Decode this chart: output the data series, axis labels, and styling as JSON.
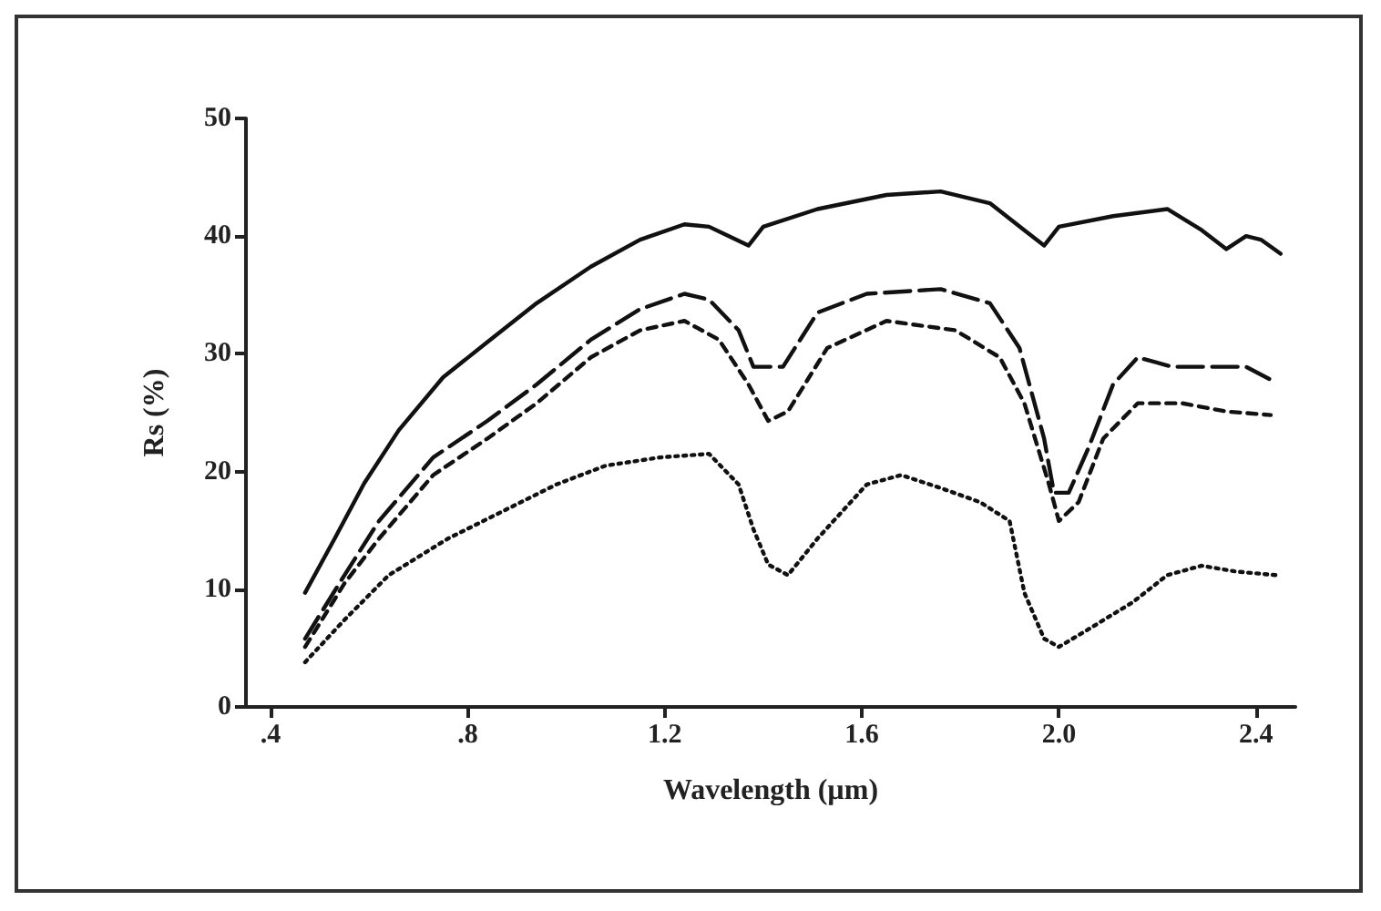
{
  "chart_data": {
    "type": "line",
    "xlabel": "Wavelength (µm)",
    "ylabel": "Rs (%)",
    "xlim": [
      0.35,
      2.48
    ],
    "ylim": [
      0,
      50
    ],
    "xticks": [
      {
        "value": 0.4,
        "label": ".4"
      },
      {
        "value": 0.8,
        "label": ".8"
      },
      1.2,
      1.6,
      {
        "value": 2.0,
        "label": "2.0"
      },
      2.4
    ],
    "yticks": [
      0,
      10,
      20,
      30,
      40,
      50
    ],
    "grid": false,
    "marker": "none",
    "series": [
      {
        "color": "#111111",
        "line_style": "solid",
        "x": [
          0.47,
          0.53,
          0.59,
          0.66,
          0.75,
          0.84,
          0.94,
          1.05,
          1.15,
          1.24,
          1.29,
          1.37,
          1.4,
          1.51,
          1.65,
          1.76,
          1.86,
          1.93,
          1.97,
          2.0,
          2.11,
          2.22,
          2.29,
          2.34,
          2.38,
          2.41,
          2.45
        ],
        "values": [
          9.7,
          14.3,
          19,
          23.5,
          28,
          31,
          34.3,
          37.4,
          39.7,
          41,
          40.8,
          39.2,
          40.8,
          42.3,
          43.5,
          43.8,
          42.8,
          40.5,
          39.2,
          40.8,
          41.7,
          42.3,
          40.5,
          38.9,
          40,
          39.7,
          38.5
        ]
      },
      {
        "color": "#111111",
        "line_style": "dashed",
        "x": [
          0.47,
          0.55,
          0.62,
          0.73,
          0.84,
          0.94,
          1.05,
          1.15,
          1.24,
          1.29,
          1.35,
          1.38,
          1.44,
          1.51,
          1.61,
          1.76,
          1.86,
          1.92,
          1.97,
          1.99,
          2.02,
          2.06,
          2.11,
          2.16,
          2.23,
          2.32,
          2.38,
          2.43
        ],
        "values": [
          5.8,
          11.2,
          15.8,
          21.2,
          24.3,
          27.4,
          31.2,
          33.8,
          35.1,
          34.6,
          32,
          28.9,
          28.9,
          33.5,
          35.1,
          35.5,
          34.3,
          30.5,
          22.8,
          18.2,
          18.2,
          22,
          27.4,
          29.7,
          28.9,
          28.9,
          28.9,
          27.8
        ]
      },
      {
        "color": "#111111",
        "line_style": "short-dashed",
        "x": [
          0.47,
          0.55,
          0.62,
          0.73,
          0.84,
          0.94,
          1.05,
          1.15,
          1.24,
          1.31,
          1.37,
          1.41,
          1.45,
          1.53,
          1.65,
          1.79,
          1.88,
          1.93,
          1.98,
          2.0,
          2.04,
          2.09,
          2.16,
          2.25,
          2.34,
          2.43
        ],
        "values": [
          5.1,
          10.5,
          14.3,
          19.7,
          22.8,
          25.8,
          29.7,
          32,
          32.8,
          31.2,
          27.4,
          24.3,
          25.1,
          30.5,
          32.8,
          32,
          29.7,
          25.8,
          18.9,
          15.8,
          17.4,
          22.8,
          25.8,
          25.8,
          25.1,
          24.8
        ]
      },
      {
        "color": "#111111",
        "line_style": "dotted",
        "x": [
          0.47,
          0.55,
          0.64,
          0.76,
          0.87,
          0.98,
          1.08,
          1.19,
          1.29,
          1.35,
          1.38,
          1.41,
          1.45,
          1.51,
          1.61,
          1.68,
          1.76,
          1.84,
          1.9,
          1.93,
          1.97,
          2.0,
          2.06,
          2.15,
          2.22,
          2.29,
          2.36,
          2.44
        ],
        "values": [
          3.8,
          7.4,
          11.2,
          14.3,
          16.6,
          18.9,
          20.5,
          21.2,
          21.5,
          18.9,
          15.1,
          12.1,
          11.2,
          14.3,
          18.9,
          19.7,
          18.6,
          17.4,
          15.8,
          9.7,
          5.8,
          5.1,
          6.6,
          8.9,
          11.2,
          12,
          11.5,
          11.2
        ]
      }
    ]
  }
}
